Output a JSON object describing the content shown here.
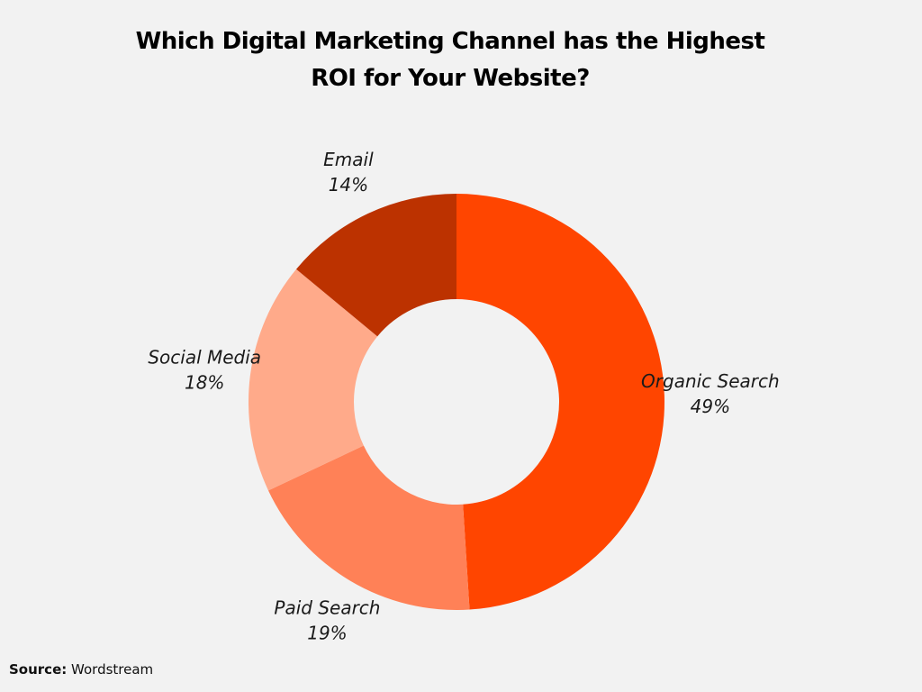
{
  "chart_data": {
    "type": "pie",
    "variant": "donut",
    "title_lines": [
      "Which Digital Marketing Channel has the Highest",
      "ROI for Your Website?"
    ],
    "slices": [
      {
        "label": "Organic Search",
        "value": 49,
        "value_label": "49%",
        "color": "#ff4500"
      },
      {
        "label": "Paid Search",
        "value": 19,
        "value_label": "19%",
        "color": "#ff8157"
      },
      {
        "label": "Social Media",
        "value": 18,
        "value_label": "18%",
        "color": "#ffaa8a"
      },
      {
        "label": "Email",
        "value": 14,
        "value_label": "14%",
        "color": "#bc3200"
      }
    ],
    "start_direction": "top",
    "order": "clockwise",
    "legend": "none"
  },
  "source": {
    "label": "Source:",
    "text": "Wordstream"
  }
}
